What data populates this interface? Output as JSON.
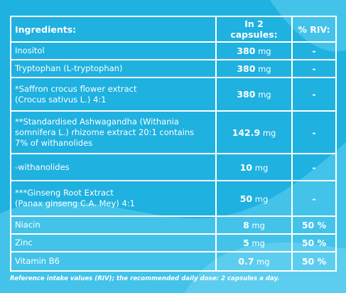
{
  "table": {
    "header": [
      "Ingredients:",
      "In 2 capsules:",
      "% RIV:"
    ],
    "rows": [
      [
        "Inositol",
        "380",
        "mg",
        "-"
      ],
      [
        "Tryptophan (L-tryptophan)",
        "380",
        "mg",
        "-"
      ],
      [
        "*Saffron crocus flower extract\n(Crocus sativus L.) 4:1",
        "380",
        "mg",
        "-"
      ],
      [
        "**Standardised Ashwagandha (Withania\nsomnifera L.) rhizome extract 20:1 contains\n 7% of withanolides",
        "142.9",
        "mg",
        "-"
      ],
      [
        "-withanolides",
        "10",
        "mg",
        "-"
      ],
      [
        " ***Ginseng Root Extract\n(Panax ginseng C.A. Mey) 4:1",
        "50",
        "mg",
        "-"
      ],
      [
        "Niacin",
        "8",
        "mg",
        "50 %"
      ],
      [
        "Zinc",
        "5",
        "mg",
        "50 %"
      ],
      [
        "Vitamin B6",
        "0.7",
        "mg",
        "50 %"
      ]
    ]
  },
  "footer": "Reference intake values (RIV); the recommended daily dose: 2 capsules a day."
}
